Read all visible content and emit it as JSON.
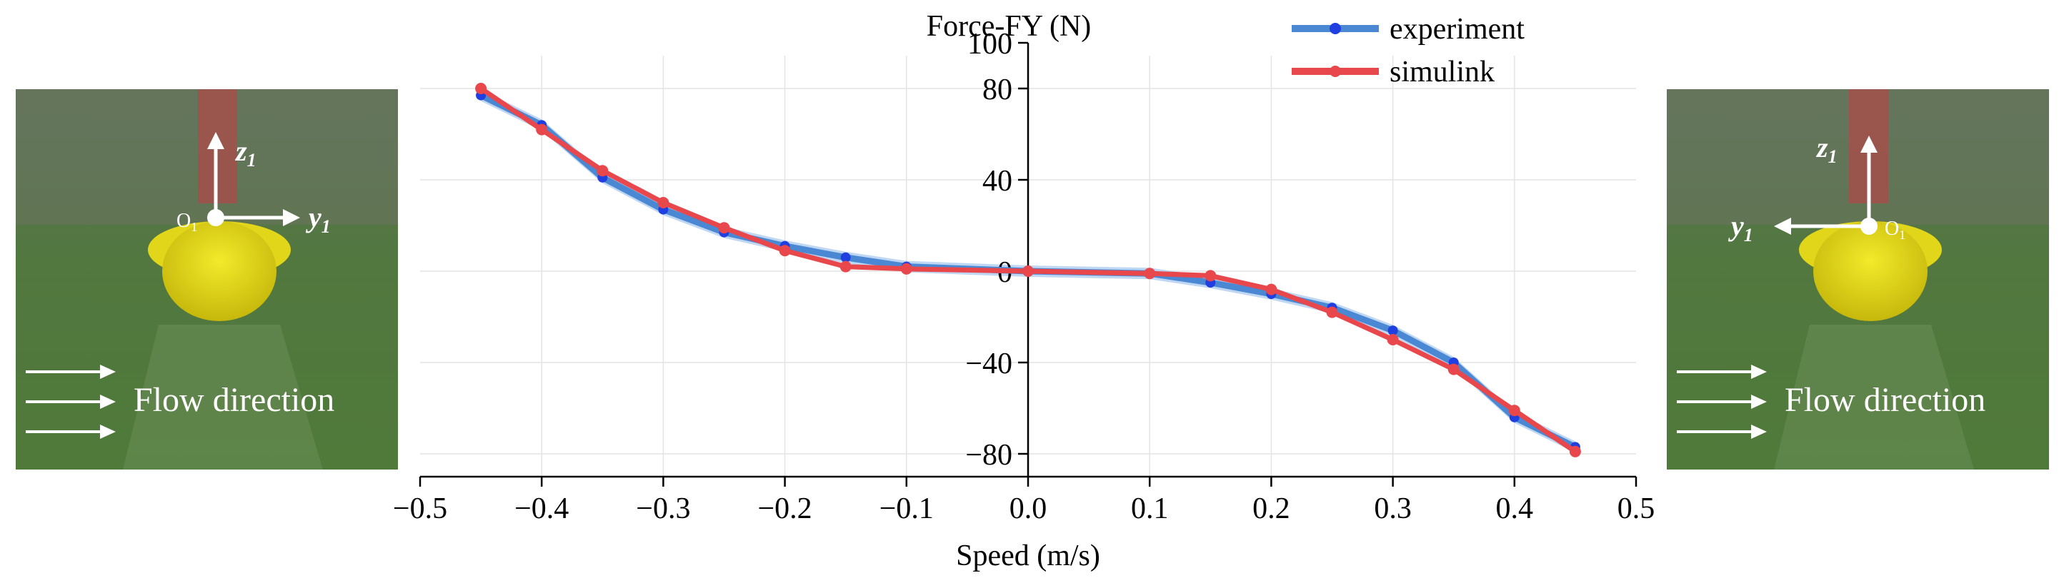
{
  "chart_data": {
    "type": "line",
    "title": "Force-FY (N)",
    "xlabel": "Speed (m/s)",
    "ylabel": "Force-FY (N)",
    "xlim": [
      -0.5,
      0.5
    ],
    "ylim": [
      -90,
      100
    ],
    "x_ticks": [
      "−0.5",
      "−0.4",
      "−0.3",
      "−0.2",
      "−0.1",
      "0.0",
      "0.1",
      "0.2",
      "0.3",
      "0.4",
      "0.5"
    ],
    "y_ticks": [
      "100",
      "80",
      "40",
      "0",
      "−40",
      "−80"
    ],
    "grid": true,
    "legend_position": "top-right",
    "series": [
      {
        "name": "experiment",
        "color": "#1f3fe0",
        "line_color": "#4a88d4",
        "band_color": "#a9c9ee",
        "band_halfwidth": 2.5,
        "x": [
          -0.45,
          -0.4,
          -0.35,
          -0.3,
          -0.25,
          -0.2,
          -0.15,
          -0.1,
          0.0,
          0.1,
          0.15,
          0.2,
          0.25,
          0.3,
          0.35,
          0.4,
          0.45
        ],
        "y": [
          77,
          64,
          41,
          27,
          17,
          11,
          6,
          2,
          0,
          -1,
          -5,
          -10,
          -16,
          -26,
          -40,
          -64,
          -77
        ]
      },
      {
        "name": "simulink",
        "color": "#e8474b",
        "line_color": "#e8474b",
        "x": [
          -0.45,
          -0.4,
          -0.35,
          -0.3,
          -0.25,
          -0.2,
          -0.15,
          -0.1,
          0.0,
          0.1,
          0.15,
          0.2,
          0.25,
          0.3,
          0.35,
          0.4,
          0.45
        ],
        "y": [
          80,
          62,
          44,
          30,
          19,
          9,
          2,
          1,
          0,
          -1,
          -2,
          -8,
          -18,
          -30,
          -43,
          -61,
          -79
        ]
      }
    ]
  },
  "left_photo": {
    "axis_z_label": "z",
    "axis_z_sub": "1",
    "axis_y_label": "y",
    "axis_y_sub": "1",
    "origin_label": "O",
    "origin_sub": "1",
    "flow_label": "Flow direction"
  },
  "right_photo": {
    "axis_z_label": "z",
    "axis_z_sub": "1",
    "axis_y_label": "y",
    "axis_y_sub": "1",
    "origin_label": "O",
    "origin_sub": "1",
    "flow_label": "Flow direction"
  }
}
